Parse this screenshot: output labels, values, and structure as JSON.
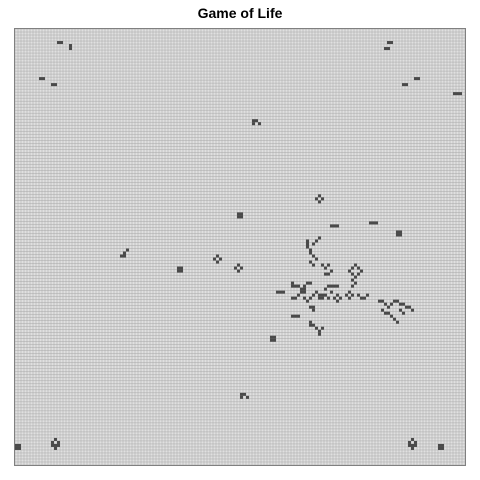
{
  "title": "Game of Life",
  "colors": {
    "background": "#ffffff",
    "grid_line": "#a8a8a8",
    "dead_cell": "#e0e0e0",
    "live_cell": "#4a4a4a"
  },
  "board": {
    "cols": 150,
    "rows": 145,
    "live_cells": [
      [
        14,
        4
      ],
      [
        15,
        4
      ],
      [
        18,
        5
      ],
      [
        18,
        6
      ],
      [
        8,
        16
      ],
      [
        9,
        16
      ],
      [
        12,
        18
      ],
      [
        13,
        18
      ],
      [
        124,
        4
      ],
      [
        125,
        4
      ],
      [
        123,
        6
      ],
      [
        124,
        6
      ],
      [
        133,
        16
      ],
      [
        134,
        16
      ],
      [
        129,
        18
      ],
      [
        130,
        18
      ],
      [
        146,
        21
      ],
      [
        147,
        21
      ],
      [
        148,
        21
      ],
      [
        79,
        30
      ],
      [
        80,
        30
      ],
      [
        79,
        31
      ],
      [
        81,
        31
      ],
      [
        100,
        56
      ],
      [
        101,
        55
      ],
      [
        102,
        56
      ],
      [
        101,
        57
      ],
      [
        74,
        61
      ],
      [
        75,
        61
      ],
      [
        74,
        62
      ],
      [
        75,
        62
      ],
      [
        105,
        65
      ],
      [
        106,
        65
      ],
      [
        107,
        65
      ],
      [
        118,
        64
      ],
      [
        119,
        64
      ],
      [
        120,
        64
      ],
      [
        127,
        67
      ],
      [
        128,
        67
      ],
      [
        127,
        68
      ],
      [
        128,
        68
      ],
      [
        36,
        74
      ],
      [
        37,
        73
      ],
      [
        36,
        75
      ],
      [
        35,
        75
      ],
      [
        66,
        76
      ],
      [
        67,
        75
      ],
      [
        68,
        76
      ],
      [
        67,
        77
      ],
      [
        73,
        79
      ],
      [
        74,
        78
      ],
      [
        75,
        79
      ],
      [
        74,
        80
      ],
      [
        54,
        79
      ],
      [
        55,
        79
      ],
      [
        54,
        80
      ],
      [
        55,
        80
      ],
      [
        97,
        70
      ],
      [
        97,
        71
      ],
      [
        97,
        72
      ],
      [
        98,
        73
      ],
      [
        98,
        74
      ],
      [
        99,
        75
      ],
      [
        100,
        76
      ],
      [
        98,
        77
      ],
      [
        99,
        78
      ],
      [
        100,
        70
      ],
      [
        101,
        69
      ],
      [
        99,
        71
      ],
      [
        102,
        78
      ],
      [
        103,
        79
      ],
      [
        104,
        78
      ],
      [
        105,
        80
      ],
      [
        103,
        81
      ],
      [
        104,
        81
      ],
      [
        103,
        86
      ],
      [
        104,
        85
      ],
      [
        105,
        87
      ],
      [
        103,
        88
      ],
      [
        104,
        89
      ],
      [
        102,
        88
      ],
      [
        92,
        84
      ],
      [
        92,
        85
      ],
      [
        93,
        85
      ],
      [
        94,
        85
      ],
      [
        95,
        86
      ],
      [
        96,
        85
      ],
      [
        96,
        86
      ],
      [
        96,
        87
      ],
      [
        97,
        84
      ],
      [
        98,
        84
      ],
      [
        92,
        89
      ],
      [
        93,
        89
      ],
      [
        94,
        88
      ],
      [
        95,
        87
      ],
      [
        96,
        89
      ],
      [
        97,
        90
      ],
      [
        98,
        89
      ],
      [
        99,
        88
      ],
      [
        100,
        87
      ],
      [
        101,
        88
      ],
      [
        101,
        89
      ],
      [
        102,
        89
      ],
      [
        105,
        85
      ],
      [
        106,
        85
      ],
      [
        107,
        85
      ],
      [
        111,
        80
      ],
      [
        112,
        81
      ],
      [
        113,
        82
      ],
      [
        114,
        81
      ],
      [
        115,
        80
      ],
      [
        114,
        79
      ],
      [
        113,
        78
      ],
      [
        112,
        79
      ],
      [
        112,
        83
      ],
      [
        113,
        84
      ],
      [
        112,
        85
      ],
      [
        106,
        89
      ],
      [
        107,
        88
      ],
      [
        108,
        89
      ],
      [
        107,
        90
      ],
      [
        110,
        88
      ],
      [
        111,
        87
      ],
      [
        112,
        88
      ],
      [
        111,
        89
      ],
      [
        114,
        88
      ],
      [
        115,
        89
      ],
      [
        116,
        89
      ],
      [
        117,
        88
      ],
      [
        87,
        87
      ],
      [
        88,
        87
      ],
      [
        89,
        87
      ],
      [
        98,
        92
      ],
      [
        99,
        92
      ],
      [
        99,
        93
      ],
      [
        121,
        90
      ],
      [
        122,
        90
      ],
      [
        123,
        91
      ],
      [
        124,
        92
      ],
      [
        125,
        91
      ],
      [
        126,
        90
      ],
      [
        127,
        90
      ],
      [
        128,
        91
      ],
      [
        129,
        91
      ],
      [
        130,
        92
      ],
      [
        131,
        92
      ],
      [
        132,
        93
      ],
      [
        122,
        93
      ],
      [
        123,
        94
      ],
      [
        124,
        94
      ],
      [
        125,
        95
      ],
      [
        126,
        96
      ],
      [
        127,
        97
      ],
      [
        128,
        93
      ],
      [
        129,
        94
      ],
      [
        92,
        95
      ],
      [
        93,
        95
      ],
      [
        94,
        95
      ],
      [
        98,
        97
      ],
      [
        98,
        98
      ],
      [
        99,
        98
      ],
      [
        100,
        99
      ],
      [
        101,
        100
      ],
      [
        102,
        99
      ],
      [
        101,
        101
      ],
      [
        85,
        102
      ],
      [
        86,
        102
      ],
      [
        85,
        103
      ],
      [
        86,
        103
      ],
      [
        75,
        121
      ],
      [
        76,
        121
      ],
      [
        75,
        122
      ],
      [
        77,
        122
      ],
      [
        0,
        138
      ],
      [
        1,
        138
      ],
      [
        0,
        139
      ],
      [
        1,
        139
      ],
      [
        12,
        137
      ],
      [
        13,
        136
      ],
      [
        14,
        137
      ],
      [
        13,
        138
      ],
      [
        12,
        138
      ],
      [
        14,
        138
      ],
      [
        13,
        139
      ],
      [
        131,
        137
      ],
      [
        132,
        136
      ],
      [
        133,
        137
      ],
      [
        132,
        138
      ],
      [
        131,
        138
      ],
      [
        133,
        138
      ],
      [
        132,
        139
      ],
      [
        141,
        138
      ],
      [
        142,
        138
      ],
      [
        141,
        139
      ],
      [
        142,
        139
      ]
    ]
  }
}
